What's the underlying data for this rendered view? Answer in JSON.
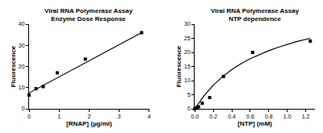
{
  "chart_data": [
    {
      "type": "scatter",
      "title": "Viral RNA Polymerase Assay\nEnzyme Dose Response",
      "x_label": "[RNAP] (µg/ml)",
      "y_label": "Fluorescence",
      "xlim": [
        0,
        4
      ],
      "xticks": [
        0,
        1,
        2,
        3,
        4
      ],
      "ylim": [
        0,
        40
      ],
      "yticks": [
        0,
        10,
        20,
        30,
        40
      ],
      "grid": false,
      "series": [
        {
          "type": "scatter",
          "marker": "square",
          "color": "#000000",
          "x": [
            0,
            0.23,
            0.47,
            0.94,
            1.875,
            3.75
          ],
          "values": [
            6.5,
            9.5,
            10.5,
            17,
            23.5,
            36
          ]
        },
        {
          "type": "line",
          "line_style": "solid",
          "color": "#000000",
          "x": [
            0,
            3.75
          ],
          "values": [
            7.5,
            36
          ]
        }
      ]
    },
    {
      "type": "scatter",
      "title": "Viral RNA Polymerase Assay\nNTP dependence",
      "x_label": "[NTP] (mM)",
      "y_label": "Fluorescence",
      "xlim": [
        0,
        1.3
      ],
      "xticks": [
        {
          "value": 0,
          "label": "0.0"
        },
        {
          "value": 0.2,
          "label": "0.2"
        },
        {
          "value": 0.4,
          "label": "0.4"
        },
        {
          "value": 0.6,
          "label": "0.6"
        },
        {
          "value": 0.8,
          "label": "0.8"
        },
        {
          "value": 1,
          "label": "1.0"
        },
        {
          "value": 1.2,
          "label": "1.2"
        }
      ],
      "ylim": [
        0,
        30
      ],
      "yticks": [
        0,
        5,
        10,
        15,
        20,
        25,
        30
      ],
      "grid": false,
      "series": [
        {
          "type": "scatter",
          "marker": "square",
          "color": "#000000",
          "x": [
            0,
            0.02,
            0.04,
            0.08,
            0.16,
            0.31,
            0.625,
            1.25
          ],
          "values": [
            0,
            0.5,
            0.7,
            2,
            4,
            11.5,
            20,
            24
          ]
        },
        {
          "type": "line",
          "line_style": "solid",
          "color": "#000000",
          "x": [
            0,
            0.1,
            0.2,
            0.3,
            0.4,
            0.5,
            0.6,
            0.7,
            0.8,
            0.9,
            1.0,
            1.1,
            1.25
          ],
          "values": [
            0,
            4.7,
            8.4,
            11.4,
            13.9,
            16,
            17.8,
            19.3,
            20.6,
            21.8,
            22.9,
            23.8,
            25
          ]
        }
      ]
    }
  ]
}
